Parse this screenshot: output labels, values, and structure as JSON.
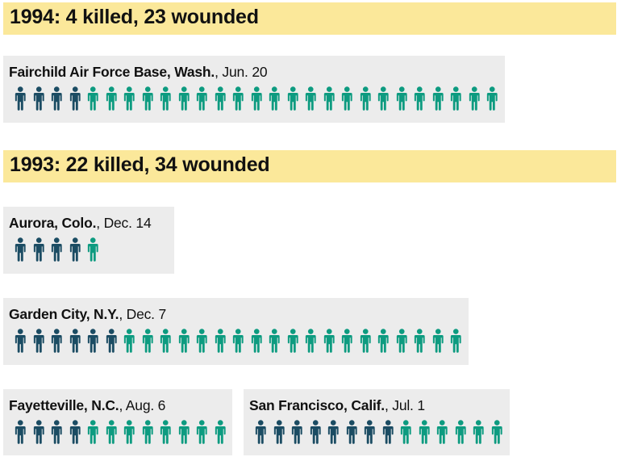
{
  "colors": {
    "killed": "#1b4c63",
    "wounded": "#0d9b80",
    "year_band": "#fbe89a",
    "card_bg": "#ececec"
  },
  "legend_mapping": {
    "killed_icon": "person-icon",
    "wounded_icon": "person-icon"
  },
  "years": [
    {
      "title": "1994: 4 killed, 23 wounded"
    },
    {
      "title": "1993: 22 killed, 34 wounded"
    }
  ],
  "chart_data": {
    "type": "pictograph",
    "unit": "one figure per person",
    "incidents": [
      {
        "year": 1994,
        "place": "Fairchild Air Force Base, Wash.",
        "date": ", Jun. 20",
        "killed": 4,
        "wounded": 23
      },
      {
        "year": 1993,
        "place": "Aurora, Colo.",
        "date": ", Dec. 14",
        "killed": 4,
        "wounded": 1
      },
      {
        "year": 1993,
        "place": "Garden City, N.Y.",
        "date": ", Dec. 7",
        "killed": 6,
        "wounded": 19
      },
      {
        "year": 1993,
        "place": "Fayetteville, N.C.",
        "date": ", Aug. 6",
        "killed": 4,
        "wounded": 8
      },
      {
        "year": 1993,
        "place": "San Francisco, Calif.",
        "date": ", Jul. 1",
        "killed": 8,
        "wounded": 6
      }
    ]
  }
}
